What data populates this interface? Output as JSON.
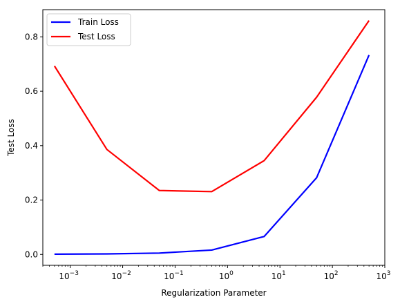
{
  "chart_data": {
    "type": "line",
    "title": "",
    "xlabel": "Regularization Parameter",
    "ylabel": "Test Loss",
    "xscale": "log",
    "xlim": [
      0.0003,
      1000
    ],
    "ylim": [
      -0.04,
      0.9
    ],
    "grid": false,
    "legend_position": "top-left",
    "x": [
      0.0005,
      0.005,
      0.05,
      0.5,
      5,
      50,
      500
    ],
    "x_ticks": [
      {
        "value": 0.001,
        "base": "10",
        "exp": "−3"
      },
      {
        "value": 0.01,
        "base": "10",
        "exp": "−2"
      },
      {
        "value": 0.1,
        "base": "10",
        "exp": "−1"
      },
      {
        "value": 1,
        "base": "10",
        "exp": "0"
      },
      {
        "value": 10,
        "base": "10",
        "exp": "1"
      },
      {
        "value": 100,
        "base": "10",
        "exp": "2"
      },
      {
        "value": 1000,
        "base": "10",
        "exp": "3"
      }
    ],
    "y_ticks": [
      {
        "value": 0.0,
        "label": "0.0"
      },
      {
        "value": 0.2,
        "label": "0.2"
      },
      {
        "value": 0.4,
        "label": "0.4"
      },
      {
        "value": 0.6,
        "label": "0.6"
      },
      {
        "value": 0.8,
        "label": "0.8"
      }
    ],
    "series": [
      {
        "name": "Train Loss",
        "color": "#0000ff",
        "values": [
          0.001,
          0.002,
          0.005,
          0.016,
          0.066,
          0.282,
          0.733
        ]
      },
      {
        "name": "Test Loss",
        "color": "#ff0000",
        "values": [
          0.693,
          0.386,
          0.235,
          0.231,
          0.345,
          0.578,
          0.86
        ]
      }
    ]
  }
}
